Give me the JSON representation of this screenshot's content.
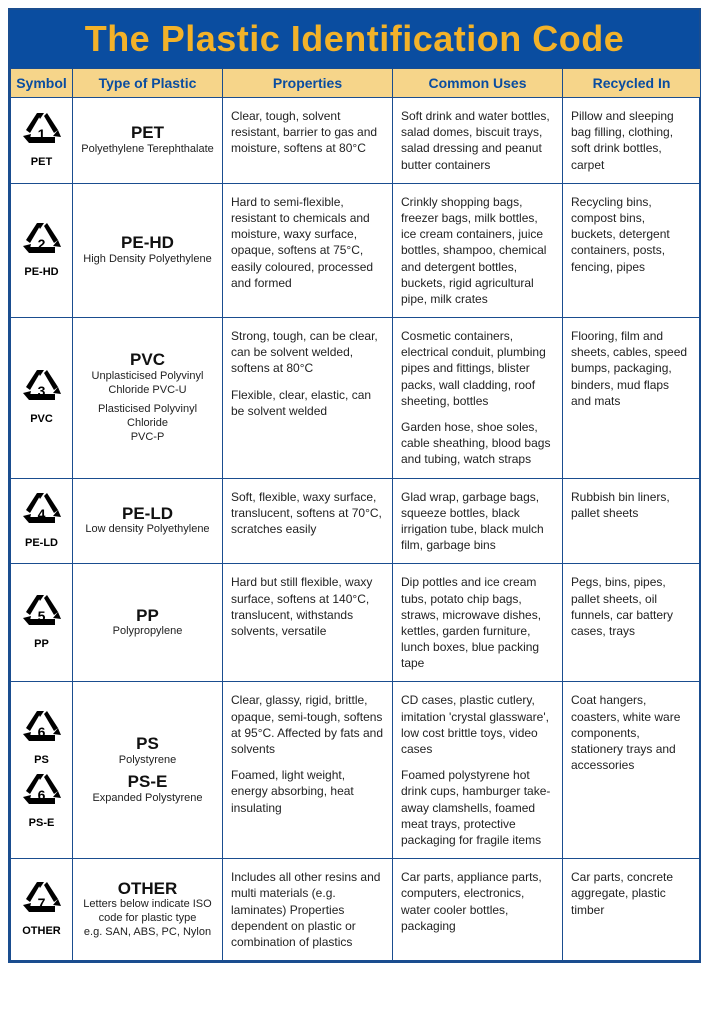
{
  "title": "The Plastic Identification Code",
  "colors": {
    "header_bg": "#0a4da0",
    "header_text": "#f3b229",
    "colhead_bg": "#f6d58a",
    "colhead_text": "#0a4da0",
    "border": "#1a4d8f"
  },
  "columns": [
    "Symbol",
    "Type of Plastic",
    "Properties",
    "Common Uses",
    "Recycled In"
  ],
  "rows": [
    {
      "symbols": [
        {
          "num": "1",
          "label": "PET"
        }
      ],
      "types": [
        {
          "abbr": "PET",
          "full": "Polyethylene Terephthalate"
        }
      ],
      "properties": [
        "Clear, tough, solvent resistant, barrier to gas and moisture, softens at 80°C"
      ],
      "uses": [
        "Soft drink and water bottles, salad domes, biscuit trays, salad dressing and peanut butter containers"
      ],
      "recycled": "Pillow and sleeping bag filling, cloth­ing, soft drink bottles, carpet"
    },
    {
      "symbols": [
        {
          "num": "2",
          "label": "PE-HD"
        }
      ],
      "types": [
        {
          "abbr": "PE-HD",
          "full": "High Density Polyethylene"
        }
      ],
      "properties": [
        "Hard to semi-flexible, resistant to chemicals and moisture, waxy surface, opaque, softens at 75°C, easily coloured, processed and formed"
      ],
      "uses": [
        "Crinkly shopping bags, freezer bags, milk bottles, ice cream containers, juice bottles, shampoo, chemical and detergent bottles, buckets, rigid agricultural pipe, milk crates"
      ],
      "recycled": "Recycling bins, compost bins, buckets, detergent containers, posts, fencing, pipes"
    },
    {
      "symbols": [
        {
          "num": "3",
          "label": "PVC"
        }
      ],
      "types": [
        {
          "abbr": "PVC",
          "full": "Unplasticised Polyvinyl Chloride PVC-U"
        },
        {
          "abbr": "",
          "full": "Plasticised Polyvinyl Chloride\nPVC-P"
        }
      ],
      "properties": [
        "Strong, tough, can be clear, can be solvent welded, softens at 80°C",
        "Flexible, clear, elastic, can be solvent welded"
      ],
      "uses": [
        "Cosmetic containers, electrical conduit, plumbing pipes and fittings, blister packs, wall cladding, roof sheeting, bottles",
        "Garden hose, shoe soles, cable sheathing, blood bags and tubing, watch straps"
      ],
      "recycled": "Flooring, film and sheets, cables, speed bumps, packaging, binders, mud flaps and mats"
    },
    {
      "symbols": [
        {
          "num": "4",
          "label": "PE-LD"
        }
      ],
      "types": [
        {
          "abbr": "PE-LD",
          "full": "Low density Polyethylene"
        }
      ],
      "properties": [
        "Soft, flexible, waxy surface, translucent, softens at 70°C, scratches easily"
      ],
      "uses": [
        "Glad wrap, garbage bags, squeeze bottles, black irrigation tube, black mulch film, garbage bins"
      ],
      "recycled": "Rubbish bin liners, pallet sheets"
    },
    {
      "symbols": [
        {
          "num": "5",
          "label": "PP"
        }
      ],
      "types": [
        {
          "abbr": "PP",
          "full": "Polypropylene"
        }
      ],
      "properties": [
        "Hard but still flexible, waxy surface, softens at 140°C, translucent, withstands solvents, versatile"
      ],
      "uses": [
        "Dip pottles and ice cream tubs, potato chip bags, straws, microwave dishes, kettles, garden furniture, lunch boxes, blue packing tape"
      ],
      "recycled": "Pegs, bins, pipes, pallet sheets, oil funnels, car battery cases, trays"
    },
    {
      "symbols": [
        {
          "num": "6",
          "label": "PS"
        },
        {
          "num": "6",
          "label": "PS-E"
        }
      ],
      "types": [
        {
          "abbr": "PS",
          "full": "Polystyrene"
        },
        {
          "abbr": "PS-E",
          "full": "Expanded Polystyrene"
        }
      ],
      "properties": [
        "Clear, glassy, rigid, brittle, opaque, semi-tough, softens at 95°C. Affected by fats and solvents",
        "Foamed, light weight, energy absorbing, heat insulating"
      ],
      "uses": [
        "CD cases, plastic cutlery, imitation 'crystal glassware', low cost brittle toys, video cases",
        "Foamed polystyrene hot drink cups, hamburger take-away clamshells, foamed meat trays, pro­tective packaging for frag­ile items"
      ],
      "recycled": "Coat hangers, coasters, white ware components, stationery trays and accessories"
    },
    {
      "symbols": [
        {
          "num": "7",
          "label": "OTHER"
        }
      ],
      "types": [
        {
          "abbr": "OTHER",
          "full": "Letters below indicate ISO code for plastic type\ne.g. SAN, ABS, PC, Nylon"
        }
      ],
      "properties": [
        "Includes all other resins and multi materials (e.g. laminates) Properties dependent on plastic or combination of plastics"
      ],
      "uses": [
        "Car parts, appliance parts, computers, electronics, water cooler bottles, packaging"
      ],
      "recycled": "Car parts, concrete aggregate, plastic timber"
    }
  ]
}
